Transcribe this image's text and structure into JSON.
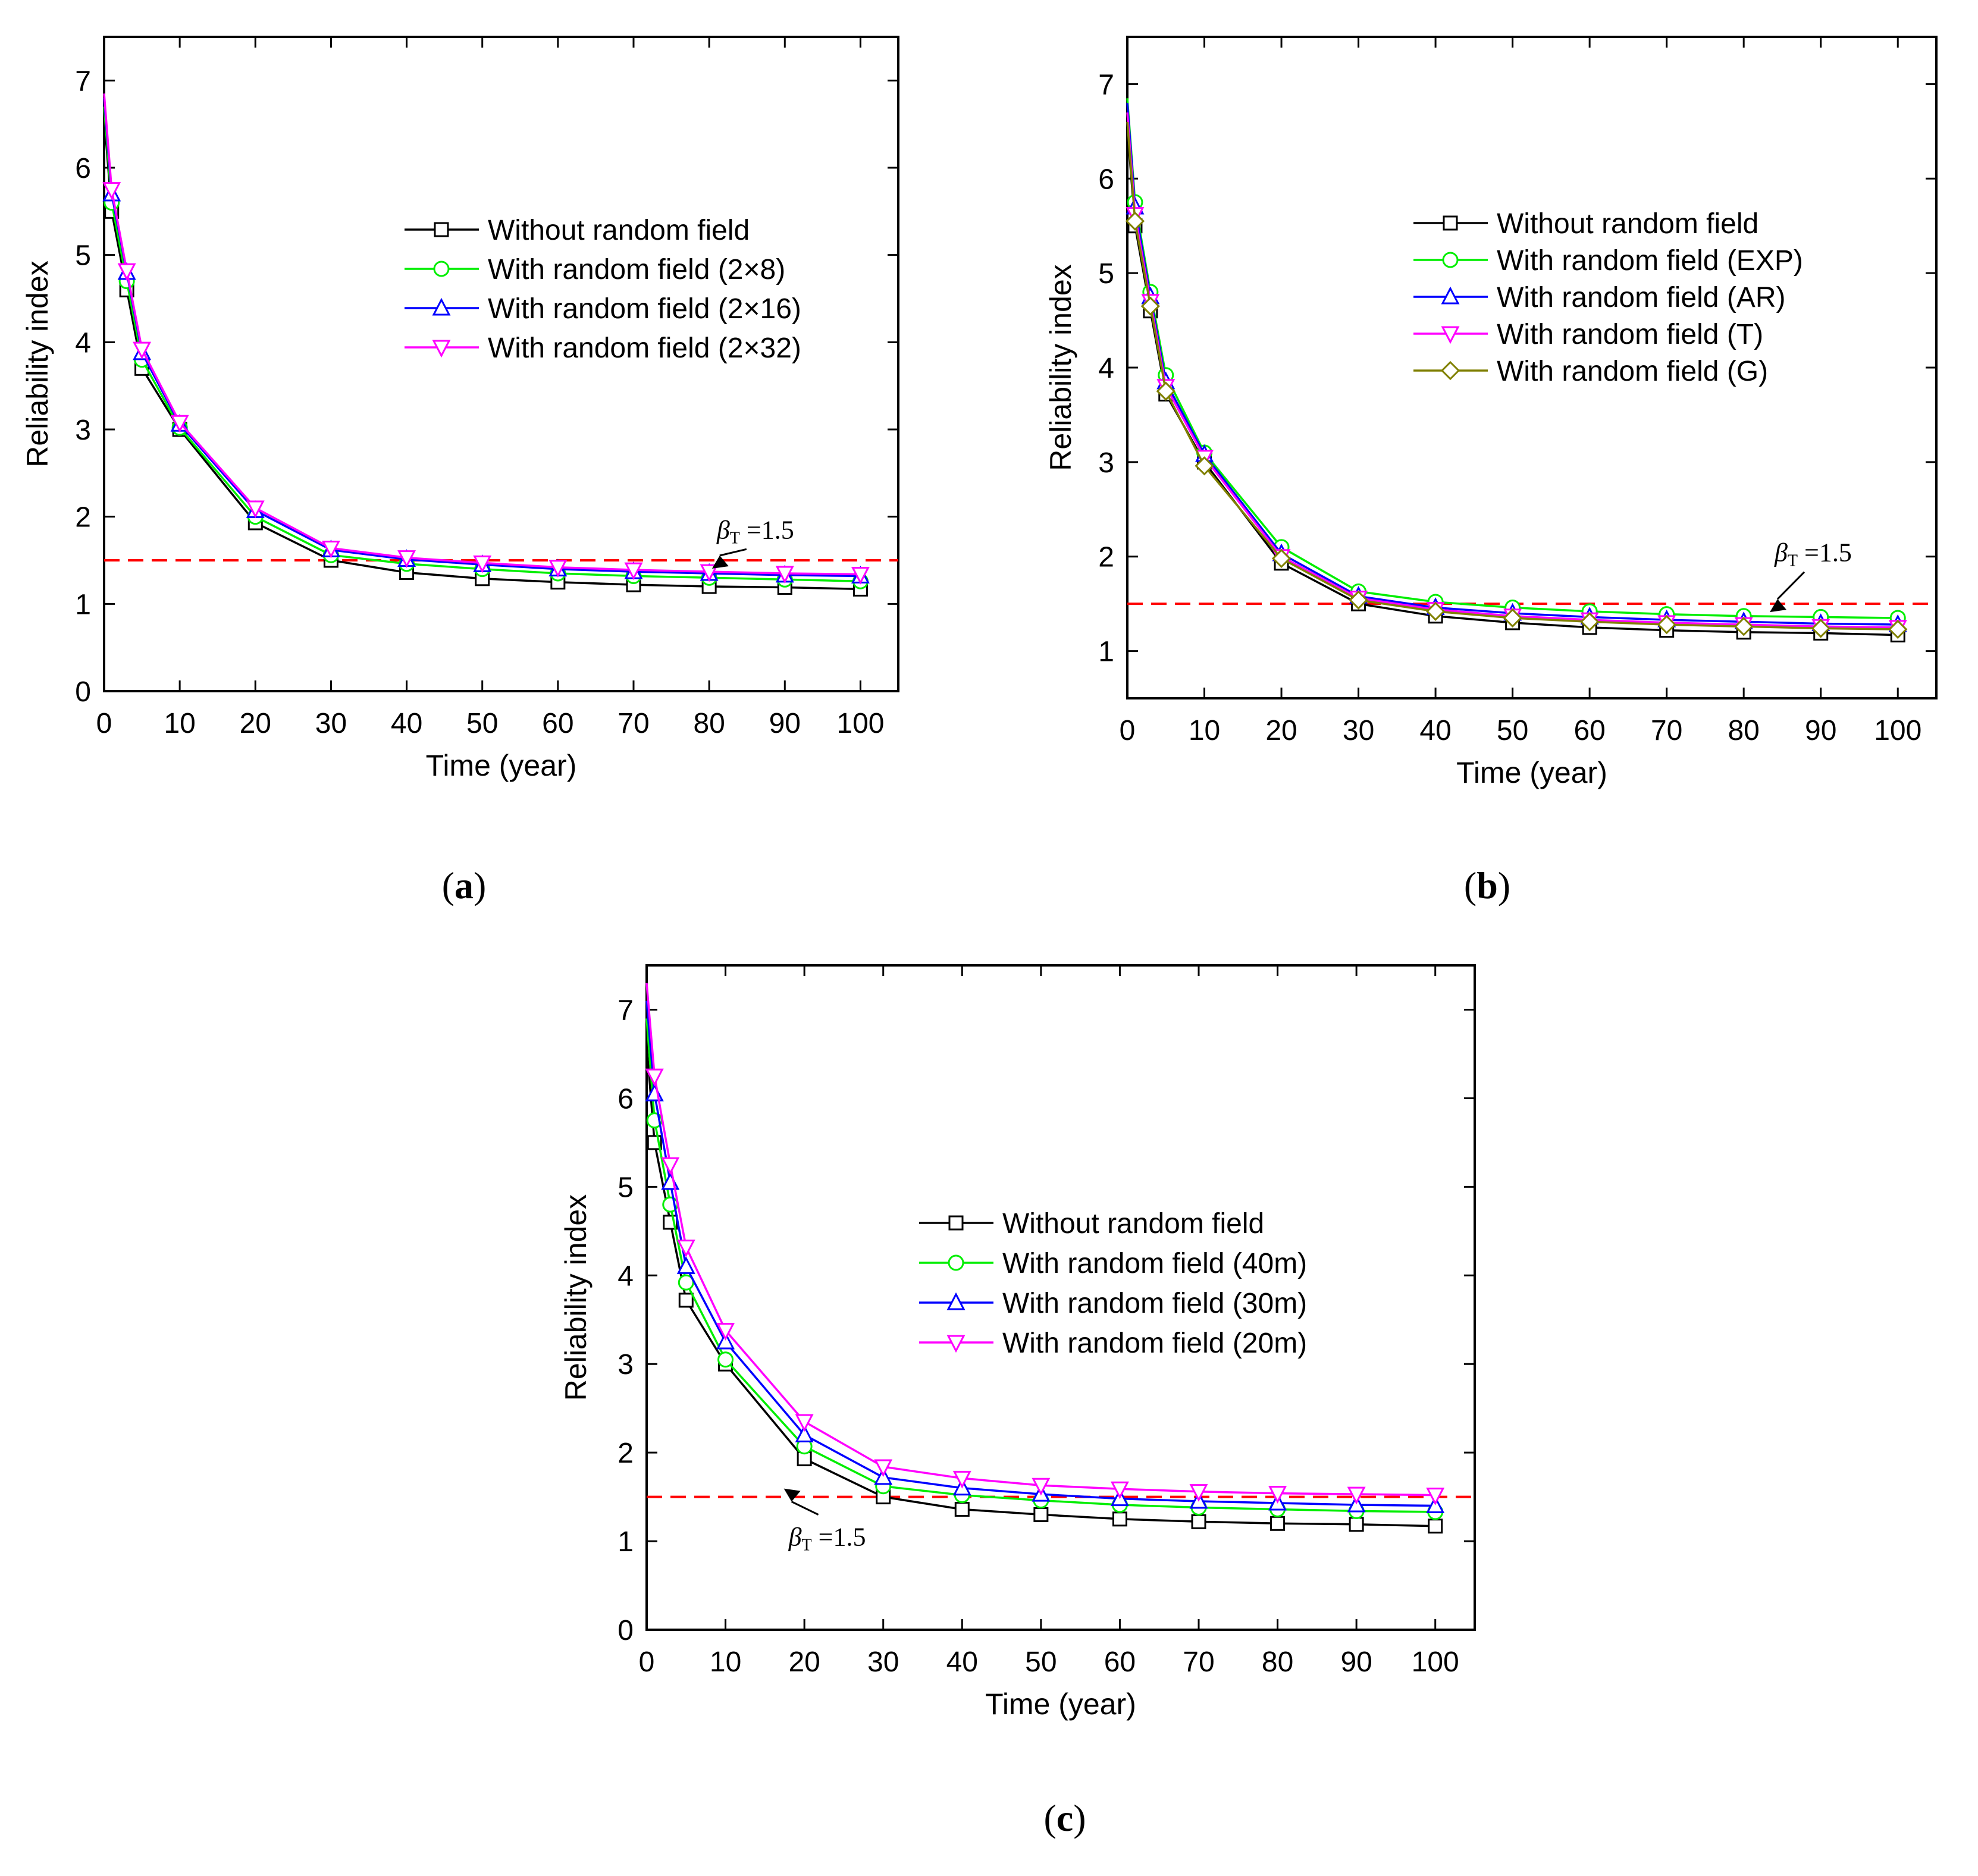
{
  "chart_data": [
    {
      "type": "line",
      "panel_label": "(a)",
      "xlabel": "Time (year)",
      "ylabel": "Reliability index",
      "xlim": [
        0,
        105
      ],
      "ylim": [
        0,
        7.5
      ],
      "xticks": [
        0,
        10,
        20,
        30,
        40,
        50,
        60,
        70,
        80,
        90,
        100
      ],
      "yticks": [
        0,
        1,
        2,
        3,
        4,
        5,
        6,
        7
      ],
      "grid": false,
      "legend_position": "upper-right",
      "x": [
        0,
        1,
        3,
        5,
        10,
        20,
        30,
        40,
        50,
        60,
        70,
        80,
        90,
        100
      ],
      "series": [
        {
          "name": "Without random field",
          "color": "#000000",
          "marker": "square",
          "values": [
            6.6,
            5.5,
            4.6,
            3.7,
            3.0,
            1.93,
            1.5,
            1.36,
            1.29,
            1.25,
            1.22,
            1.2,
            1.19,
            1.17
          ]
        },
        {
          "name": "With random field (2×8)",
          "color": "#00ee00",
          "marker": "circle",
          "values": [
            6.7,
            5.6,
            4.7,
            3.8,
            3.02,
            2.0,
            1.56,
            1.46,
            1.4,
            1.35,
            1.32,
            1.3,
            1.28,
            1.26
          ]
        },
        {
          "name": "With random field (2×16)",
          "color": "#0000ff",
          "marker": "triangle-up",
          "values": [
            6.8,
            5.7,
            4.8,
            3.88,
            3.06,
            2.07,
            1.62,
            1.51,
            1.45,
            1.4,
            1.37,
            1.35,
            1.33,
            1.32
          ]
        },
        {
          "name": "With random field (2×32)",
          "color": "#ff00ff",
          "marker": "triangle-down",
          "values": [
            6.85,
            5.75,
            4.82,
            3.92,
            3.08,
            2.1,
            1.64,
            1.53,
            1.47,
            1.42,
            1.39,
            1.37,
            1.35,
            1.34
          ]
        }
      ],
      "threshold": {
        "value": 1.5,
        "color": "#ff0000",
        "style": "dashed"
      },
      "annotation": {
        "symbol": "β",
        "subscript": "T",
        "text": " =1.5",
        "at_x": 81,
        "at_y": 1.75,
        "arrow_to": [
          81,
          1.5
        ]
      }
    },
    {
      "type": "line",
      "panel_label": "(b)",
      "xlabel": "Time (year)",
      "ylabel": "Reliability index",
      "xlim": [
        0,
        105
      ],
      "ylim": [
        0.5,
        7.5
      ],
      "xticks": [
        0,
        10,
        20,
        30,
        40,
        50,
        60,
        70,
        80,
        90,
        100
      ],
      "yticks": [
        1,
        2,
        3,
        4,
        5,
        6,
        7
      ],
      "grid": false,
      "legend_position": "upper-right",
      "x": [
        0,
        1,
        3,
        5,
        10,
        20,
        30,
        40,
        50,
        60,
        70,
        80,
        90,
        100
      ],
      "series": [
        {
          "name": "Without random field",
          "color": "#000000",
          "marker": "square",
          "values": [
            6.55,
            5.5,
            4.6,
            3.72,
            3.0,
            1.93,
            1.5,
            1.37,
            1.3,
            1.25,
            1.22,
            1.2,
            1.19,
            1.17
          ]
        },
        {
          "name": "With random field (EXP)",
          "color": "#00ee00",
          "marker": "circle",
          "values": [
            6.85,
            5.75,
            4.8,
            3.92,
            3.1,
            2.1,
            1.63,
            1.52,
            1.46,
            1.42,
            1.39,
            1.37,
            1.36,
            1.35
          ]
        },
        {
          "name": "With random field (AR)",
          "color": "#0000ff",
          "marker": "triangle-up",
          "values": [
            6.8,
            5.7,
            4.75,
            3.85,
            3.08,
            2.03,
            1.58,
            1.46,
            1.4,
            1.36,
            1.33,
            1.31,
            1.29,
            1.28
          ]
        },
        {
          "name": "With random field (T)",
          "color": "#ff00ff",
          "marker": "triangle-down",
          "values": [
            6.7,
            5.62,
            4.7,
            3.8,
            3.05,
            2.0,
            1.56,
            1.44,
            1.37,
            1.33,
            1.3,
            1.28,
            1.26,
            1.25
          ]
        },
        {
          "name": "With random field (G)",
          "color": "#808000",
          "marker": "diamond",
          "values": [
            6.6,
            5.55,
            4.65,
            3.75,
            2.96,
            1.98,
            1.54,
            1.42,
            1.35,
            1.31,
            1.28,
            1.26,
            1.24,
            1.23
          ]
        }
      ],
      "threshold": {
        "value": 1.5,
        "color": "#ff0000",
        "style": "dashed"
      },
      "annotation": {
        "symbol": "β",
        "subscript": "T",
        "text": " =1.5",
        "at_x": 84,
        "at_y": 1.95,
        "arrow_to": [
          84,
          1.5
        ]
      }
    },
    {
      "type": "line",
      "panel_label": "(c)",
      "xlabel": "Time (year)",
      "ylabel": "Reliability index",
      "xlim": [
        0,
        105
      ],
      "ylim": [
        0,
        7.5
      ],
      "xticks": [
        0,
        10,
        20,
        30,
        40,
        50,
        60,
        70,
        80,
        90,
        100
      ],
      "yticks": [
        0,
        1,
        2,
        3,
        4,
        5,
        6,
        7
      ],
      "grid": false,
      "legend_position": "right",
      "x": [
        0,
        1,
        3,
        5,
        10,
        20,
        30,
        40,
        50,
        60,
        70,
        80,
        90,
        100
      ],
      "series": [
        {
          "name": "Without random field",
          "color": "#000000",
          "marker": "square",
          "values": [
            6.6,
            5.5,
            4.6,
            3.72,
            3.0,
            1.93,
            1.5,
            1.36,
            1.3,
            1.25,
            1.22,
            1.2,
            1.19,
            1.17
          ]
        },
        {
          "name": "With random field (40m)",
          "color": "#00ee00",
          "marker": "circle",
          "values": [
            6.9,
            5.75,
            4.8,
            3.92,
            3.05,
            2.07,
            1.62,
            1.52,
            1.46,
            1.41,
            1.38,
            1.36,
            1.34,
            1.33
          ]
        },
        {
          "name": "With random field (30m)",
          "color": "#0000ff",
          "marker": "triangle-up",
          "values": [
            7.1,
            6.05,
            5.05,
            4.1,
            3.25,
            2.2,
            1.72,
            1.6,
            1.53,
            1.48,
            1.45,
            1.43,
            1.41,
            1.4
          ]
        },
        {
          "name": "With random field (20m)",
          "color": "#ff00ff",
          "marker": "triangle-down",
          "values": [
            7.3,
            6.25,
            5.25,
            4.32,
            3.38,
            2.35,
            1.84,
            1.71,
            1.63,
            1.59,
            1.56,
            1.54,
            1.53,
            1.52
          ]
        }
      ],
      "threshold": {
        "value": 1.5,
        "color": "#ff0000",
        "style": "dashed"
      },
      "annotation": {
        "symbol": "β",
        "subscript": "T",
        "text": " =1.5",
        "at_x": 18,
        "at_y": 0.95,
        "arrow_to": [
          18,
          1.5
        ]
      }
    }
  ]
}
